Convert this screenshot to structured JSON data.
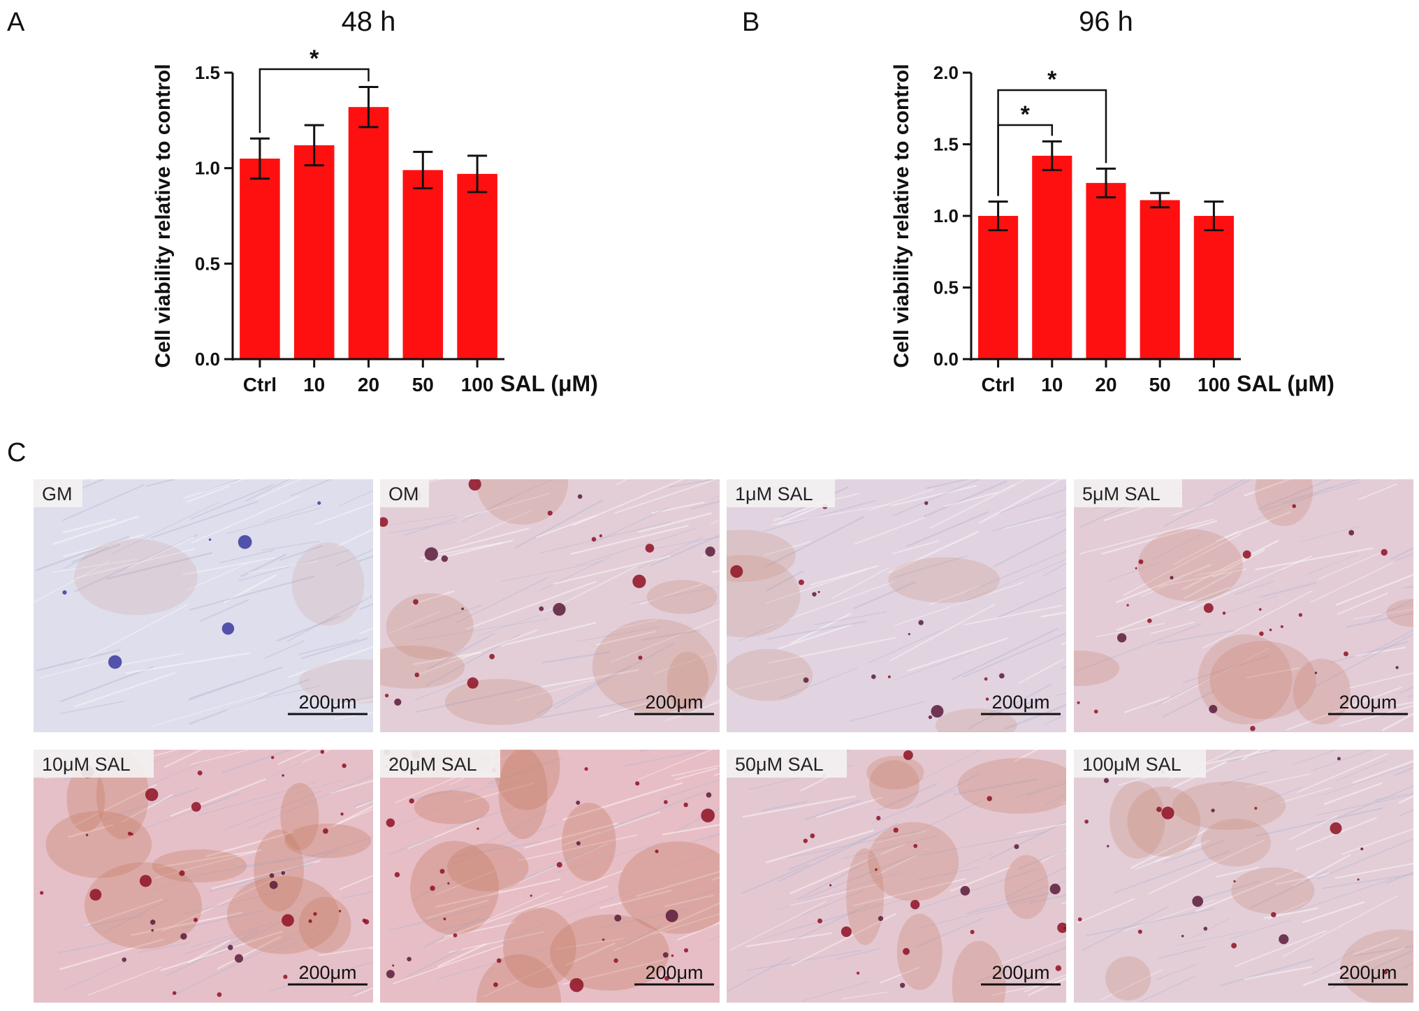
{
  "panels": {
    "a": "A",
    "b": "B",
    "c": "C"
  },
  "chart_data": [
    {
      "type": "bar",
      "panel": "A",
      "title": "48 h",
      "ylabel": "Cell viability relative to control",
      "xlabel": "SAL (μM)",
      "categories": [
        "Ctrl",
        "10",
        "20",
        "50",
        "100"
      ],
      "values": [
        1.05,
        1.12,
        1.32,
        0.99,
        0.97
      ],
      "errors": [
        0.105,
        0.105,
        0.105,
        0.095,
        0.095
      ],
      "ylim": [
        0,
        1.5
      ],
      "yticks": [
        "0.0",
        "0.5",
        "1.0",
        "1.5"
      ],
      "bar_color": "#ff1010",
      "significance": [
        {
          "from": 0,
          "to": 2,
          "label": "*"
        }
      ]
    },
    {
      "type": "bar",
      "panel": "B",
      "title": "96 h",
      "ylabel": "Cell viability relative to control",
      "xlabel": "SAL (μM)",
      "categories": [
        "Ctrl",
        "10",
        "20",
        "50",
        "100"
      ],
      "values": [
        1.0,
        1.42,
        1.23,
        1.11,
        1.0
      ],
      "errors": [
        0.1,
        0.1,
        0.1,
        0.05,
        0.1
      ],
      "ylim": [
        0,
        2.0
      ],
      "yticks": [
        "0.0",
        "0.5",
        "1.0",
        "1.5",
        "2.0"
      ],
      "bar_color": "#ff1010",
      "significance": [
        {
          "from": 0,
          "to": 2,
          "label": "*"
        },
        {
          "from": 0,
          "to": 1,
          "label": "*"
        }
      ]
    }
  ],
  "micrographs": [
    {
      "label": "GM",
      "scale": "200μm",
      "stain": 0.05
    },
    {
      "label": "OM",
      "scale": "200μm",
      "stain": 0.45
    },
    {
      "label": "1μM SAL",
      "scale": "200μm",
      "stain": 0.3
    },
    {
      "label": "5μM SAL",
      "scale": "200μm",
      "stain": 0.5
    },
    {
      "label": "10μM SAL",
      "scale": "200μm",
      "stain": 0.8
    },
    {
      "label": "20μM SAL",
      "scale": "200μm",
      "stain": 0.85
    },
    {
      "label": "50μM SAL",
      "scale": "200μm",
      "stain": 0.6
    },
    {
      "label": "100μM SAL",
      "scale": "200μm",
      "stain": 0.45
    }
  ]
}
